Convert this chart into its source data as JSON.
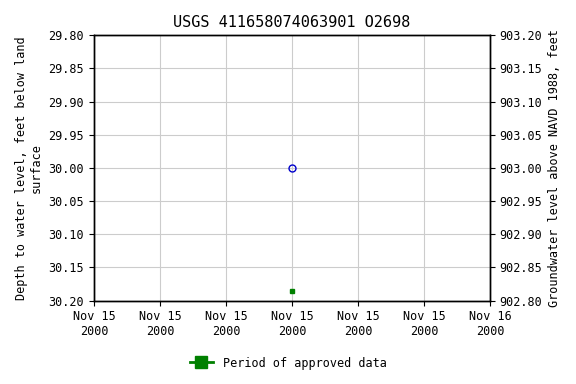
{
  "title": "USGS 411658074063901 O2698",
  "ylabel_left": "Depth to water level, feet below land\nsurface",
  "ylabel_right": "Groundwater level above NAVD 1988, feet",
  "ylim_left": [
    29.8,
    30.2
  ],
  "ylim_right": [
    902.8,
    903.2
  ],
  "yticks_left": [
    29.8,
    29.85,
    29.9,
    29.95,
    30.0,
    30.05,
    30.1,
    30.15,
    30.2
  ],
  "ytick_labels_left": [
    "29.80",
    "29.85",
    "29.90",
    "29.95",
    "30.00",
    "30.05",
    "30.10",
    "30.15",
    "30.20"
  ],
  "yticks_right": [
    902.8,
    902.85,
    902.9,
    902.95,
    903.0,
    903.05,
    903.1,
    903.15,
    903.2
  ],
  "ytick_labels_right": [
    "902.80",
    "902.85",
    "902.90",
    "902.95",
    "903.00",
    "903.05",
    "903.10",
    "903.15",
    "903.20"
  ],
  "xtick_positions": [
    0,
    1,
    2,
    3,
    4,
    5,
    6
  ],
  "xtick_labels": [
    "Nov 15\n2000",
    "Nov 15\n2000",
    "Nov 15\n2000",
    "Nov 15\n2000",
    "Nov 15\n2000",
    "Nov 15\n2000",
    "Nov 16\n2000"
  ],
  "xlim": [
    0,
    6
  ],
  "data_points": [
    {
      "x": 3.0,
      "depth": 30.0,
      "marker": "o",
      "color": "#0000cc",
      "facecolor": "none",
      "markersize": 5
    },
    {
      "x": 3.0,
      "depth": 30.185,
      "marker": "s",
      "color": "#008000",
      "facecolor": "#008000",
      "markersize": 3
    }
  ],
  "legend_label": "Period of approved data",
  "legend_color": "#008000",
  "background_color": "#ffffff",
  "grid_color": "#cccccc",
  "title_fontsize": 11,
  "axis_label_fontsize": 8.5,
  "tick_fontsize": 8.5
}
